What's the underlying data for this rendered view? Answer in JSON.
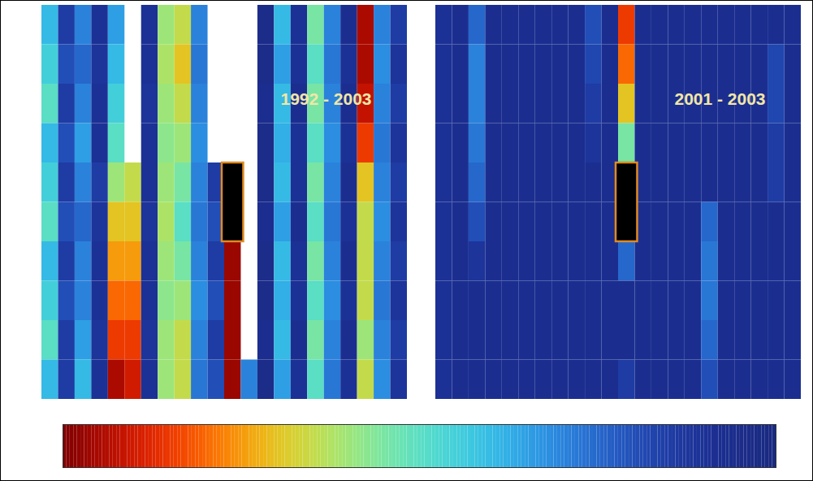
{
  "chart_data": [
    {
      "type": "heatmap",
      "title": "1992 - 2003",
      "tick_labels": false,
      "color_range": [
        0,
        1
      ],
      "columns": [
        [
          0.6,
          0.55,
          0.5,
          0.6,
          0.55,
          0.5,
          0.6,
          0.55,
          0.5,
          0.6
        ],
        [
          0.85,
          0.8,
          0.85,
          0.8,
          0.85,
          0.8,
          0.85,
          0.8,
          0.85,
          0.85
        ],
        [
          0.7,
          0.75,
          0.7,
          0.65,
          0.7,
          0.75,
          0.7,
          0.7,
          0.65,
          0.6
        ],
        [
          0.9,
          0.88,
          0.9,
          0.9,
          0.85,
          0.88,
          0.9,
          0.9,
          0.88,
          0.9
        ],
        [
          0.65,
          0.6,
          0.55,
          0.5,
          0.4,
          0.3,
          0.25,
          0.2,
          0.15,
          0.05
        ],
        [
          null,
          null,
          null,
          null,
          0.35,
          0.3,
          0.25,
          0.2,
          0.15,
          0.1
        ],
        [
          0.9,
          0.9,
          0.88,
          0.9,
          0.9,
          0.88,
          0.9,
          0.9,
          0.88,
          0.9
        ],
        [
          0.4,
          0.38,
          0.4,
          0.42,
          0.4,
          0.38,
          0.4,
          0.42,
          0.4,
          0.4
        ],
        [
          0.35,
          0.3,
          0.35,
          0.4,
          0.45,
          0.5,
          0.45,
          0.4,
          0.35,
          0.35
        ],
        [
          0.7,
          0.72,
          0.7,
          0.68,
          0.7,
          0.72,
          0.7,
          0.68,
          0.7,
          0.72
        ],
        [
          null,
          null,
          null,
          null,
          0.85,
          0.8,
          0.85,
          0.8,
          0.85,
          0.8
        ],
        [
          null,
          null,
          null,
          null,
          0.05,
          0.05,
          0.03,
          0.03,
          0.03,
          0.03
        ],
        [
          null,
          null,
          null,
          null,
          null,
          null,
          null,
          null,
          null,
          0.7
        ],
        [
          0.95,
          0.95,
          0.93,
          0.95,
          0.95,
          0.93,
          0.95,
          0.95,
          0.93,
          0.95
        ],
        [
          0.6,
          0.65,
          0.6,
          0.62,
          0.6,
          0.65,
          0.6,
          0.62,
          0.6,
          0.65
        ],
        [
          0.9,
          0.9,
          0.92,
          0.9,
          0.9,
          0.92,
          0.9,
          0.9,
          0.92,
          0.9
        ],
        [
          0.45,
          0.5,
          0.45,
          0.5,
          0.45,
          0.5,
          0.45,
          0.5,
          0.45,
          0.5
        ],
        [
          0.7,
          0.72,
          0.7,
          0.68,
          0.7,
          0.72,
          0.7,
          0.68,
          0.7,
          0.72
        ],
        [
          0.92,
          0.9,
          0.92,
          0.9,
          0.92,
          0.9,
          0.92,
          0.9,
          0.92,
          0.9
        ],
        [
          0.05,
          0.05,
          0.08,
          0.15,
          0.3,
          0.35,
          0.35,
          0.35,
          0.4,
          0.35
        ],
        [
          0.7,
          0.68,
          0.7,
          0.72,
          0.7,
          0.68,
          0.7,
          0.72,
          0.7,
          0.68
        ],
        [
          0.85,
          0.88,
          0.85,
          0.88,
          0.85,
          0.88,
          0.85,
          0.88,
          0.85,
          0.88
        ]
      ],
      "markers": [
        {
          "column": 11,
          "rows": [
            4,
            5
          ]
        }
      ]
    },
    {
      "type": "heatmap",
      "title": "2001 - 2003",
      "tick_labels": false,
      "color_range": [
        0,
        1
      ],
      "columns": [
        [
          0.9,
          0.9,
          0.9,
          0.9,
          0.9,
          0.9,
          0.9,
          0.9,
          0.9,
          0.9
        ],
        [
          0.92,
          0.92,
          0.92,
          0.92,
          0.92,
          0.92,
          0.92,
          0.92,
          0.92,
          0.92
        ],
        [
          0.75,
          0.7,
          0.7,
          0.72,
          0.75,
          0.8,
          0.88,
          0.92,
          0.92,
          0.92
        ],
        [
          0.92,
          0.92,
          0.92,
          0.92,
          0.92,
          0.92,
          0.92,
          0.92,
          0.92,
          0.92
        ],
        [
          0.92,
          0.92,
          0.92,
          0.92,
          0.92,
          0.92,
          0.92,
          0.92,
          0.92,
          0.92
        ],
        [
          0.92,
          0.92,
          0.92,
          0.92,
          0.92,
          0.92,
          0.92,
          0.92,
          0.92,
          0.92
        ],
        [
          0.92,
          0.92,
          0.92,
          0.92,
          0.92,
          0.92,
          0.92,
          0.92,
          0.92,
          0.92
        ],
        [
          0.92,
          0.92,
          0.92,
          0.92,
          0.92,
          0.92,
          0.92,
          0.92,
          0.92,
          0.92
        ],
        [
          0.92,
          0.92,
          0.92,
          0.92,
          0.92,
          0.92,
          0.92,
          0.92,
          0.92,
          0.92
        ],
        [
          0.8,
          0.82,
          0.85,
          0.88,
          0.92,
          0.92,
          0.92,
          0.92,
          0.92,
          0.92
        ],
        [
          0.92,
          0.92,
          0.92,
          0.92,
          0.92,
          0.92,
          0.92,
          0.92,
          0.92,
          0.92
        ],
        [
          0.15,
          0.2,
          0.3,
          0.45,
          0.6,
          0.65,
          0.75,
          0.92,
          0.92,
          0.85
        ],
        [
          0.92,
          0.92,
          0.92,
          0.92,
          0.92,
          0.92,
          0.92,
          0.92,
          0.92,
          0.92
        ],
        [
          0.92,
          0.92,
          0.92,
          0.92,
          0.92,
          0.92,
          0.92,
          0.92,
          0.92,
          0.92
        ],
        [
          0.92,
          0.92,
          0.92,
          0.92,
          0.92,
          0.92,
          0.92,
          0.92,
          0.92,
          0.92
        ],
        [
          0.92,
          0.92,
          0.92,
          0.92,
          0.92,
          0.92,
          0.92,
          0.92,
          0.92,
          0.92
        ],
        [
          0.92,
          0.92,
          0.92,
          0.92,
          0.92,
          0.75,
          0.72,
          0.72,
          0.75,
          0.8
        ],
        [
          0.92,
          0.92,
          0.92,
          0.92,
          0.92,
          0.92,
          0.92,
          0.92,
          0.92,
          0.92
        ],
        [
          0.92,
          0.92,
          0.92,
          0.92,
          0.92,
          0.92,
          0.92,
          0.92,
          0.92,
          0.92
        ],
        [
          0.92,
          0.92,
          0.92,
          0.92,
          0.92,
          0.92,
          0.92,
          0.92,
          0.92,
          0.92
        ],
        [
          0.92,
          0.82,
          0.82,
          0.85,
          0.85,
          0.92,
          0.92,
          0.92,
          0.92,
          0.92
        ],
        [
          0.92,
          0.92,
          0.92,
          0.92,
          0.92,
          0.92,
          0.92,
          0.92,
          0.92,
          0.92
        ]
      ],
      "markers": [
        {
          "column": 11,
          "rows": [
            4,
            5
          ]
        }
      ]
    }
  ]
}
